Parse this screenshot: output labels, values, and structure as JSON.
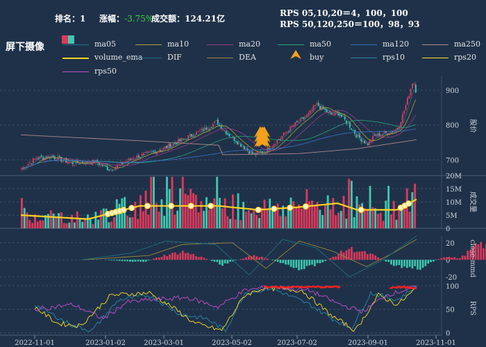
{
  "header": {
    "rank_label": "排名：",
    "rank_value": "1",
    "change_label": "涨幅：",
    "change_value": "-3.75%",
    "turnover_label": "成交额：",
    "turnover_value": "124.21亿",
    "rps_line1": "RPS 05,10,20＝4，100，100",
    "rps_line2": "RPS 50,120,250＝100，98，93"
  },
  "title": "屏下摄像",
  "legend": [
    {
      "name": "ma05",
      "color": "#2a6f8f",
      "type": "line"
    },
    {
      "name": "ma10",
      "color": "#b5a23a",
      "type": "line"
    },
    {
      "name": "ma20",
      "color": "#9a3f8a",
      "type": "line"
    },
    {
      "name": "ma50",
      "color": "#2aa37a",
      "type": "line"
    },
    {
      "name": "ma120",
      "color": "#3a74c8",
      "type": "line"
    },
    {
      "name": "ma250",
      "color": "#b08a8a",
      "type": "line"
    },
    {
      "name": "volume_ema",
      "color": "#ffd21f",
      "type": "thick"
    },
    {
      "name": "DIF",
      "color": "#1f6f7f",
      "type": "line"
    },
    {
      "name": "DEA",
      "color": "#9a8a3a",
      "type": "line"
    },
    {
      "name": "buy",
      "color": "#f3a01b",
      "type": "marker"
    },
    {
      "name": "rps10",
      "color": "#2a8aa8",
      "type": "line"
    },
    {
      "name": "rps20",
      "color": "#ffe01f",
      "type": "line"
    },
    {
      "name": "rps50",
      "color": "#c84fd0",
      "type": "line"
    }
  ],
  "colors": {
    "up": "#e0395a",
    "down": "#3ec9b0",
    "grid": "#3a4e68",
    "background": "#1f3149"
  },
  "chart_data": [
    {
      "type": "candlestick",
      "ylabel": "股价",
      "yticks": [
        700,
        800,
        900
      ],
      "ylim": [
        655,
        940
      ],
      "price_path": [
        [
          0,
          675
        ],
        [
          0.04,
          705
        ],
        [
          0.08,
          710
        ],
        [
          0.14,
          690
        ],
        [
          0.2,
          695
        ],
        [
          0.24,
          672
        ],
        [
          0.3,
          705
        ],
        [
          0.38,
          730
        ],
        [
          0.44,
          760
        ],
        [
          0.5,
          790
        ],
        [
          0.53,
          810
        ],
        [
          0.56,
          775
        ],
        [
          0.6,
          740
        ],
        [
          0.63,
          715
        ],
        [
          0.66,
          725
        ],
        [
          0.7,
          760
        ],
        [
          0.74,
          800
        ],
        [
          0.78,
          830
        ],
        [
          0.8,
          860
        ],
        [
          0.82,
          845
        ],
        [
          0.84,
          830
        ],
        [
          0.86,
          835
        ],
        [
          0.89,
          800
        ],
        [
          0.91,
          770
        ],
        [
          0.94,
          745
        ],
        [
          0.96,
          770
        ],
        [
          1.0,
          780
        ]
      ],
      "price_path_tail": [
        [
          0.0,
          780
        ],
        [
          0.3,
          790
        ],
        [
          0.6,
          860
        ],
        [
          0.85,
          930
        ],
        [
          1.0,
          880
        ]
      ],
      "ma250": [
        [
          0,
          772
        ],
        [
          0.3,
          755
        ],
        [
          0.5,
          742
        ],
        [
          0.51,
          715
        ],
        [
          0.7,
          718
        ],
        [
          0.85,
          732
        ],
        [
          1.0,
          758
        ]
      ]
    },
    {
      "type": "bar",
      "ylabel": "成交量",
      "yticks": [
        "0",
        "5M",
        "10M",
        "15M",
        "20M"
      ],
      "ylim": [
        0,
        20
      ],
      "volume_ema_path": [
        [
          0,
          5
        ],
        [
          0.17,
          3.5
        ],
        [
          0.3,
          8.5
        ],
        [
          0.4,
          8.5
        ],
        [
          0.5,
          8.5
        ],
        [
          0.6,
          7
        ],
        [
          0.7,
          8
        ],
        [
          0.8,
          9.5
        ],
        [
          0.85,
          7
        ],
        [
          0.95,
          7
        ],
        [
          1.0,
          11
        ]
      ]
    },
    {
      "type": "bar",
      "ylabel": "close-mmd",
      "yticks": [
        -20,
        0,
        20
      ],
      "ylim": [
        -25,
        28
      ]
    },
    {
      "type": "line",
      "ylabel": "RPS",
      "yticks": [
        0,
        50,
        100
      ],
      "ylim": [
        -5,
        110
      ]
    }
  ],
  "x_axis": {
    "ticks": [
      "2022-11-01",
      "2023-01-02",
      "2023-03-01",
      "2023-05-02",
      "2023-07-02",
      "2023-09-01",
      "2023-11-01"
    ]
  }
}
